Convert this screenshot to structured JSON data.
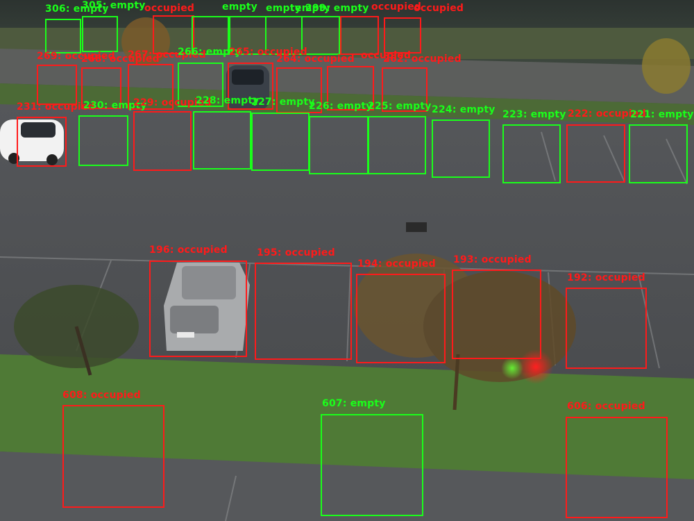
{
  "colors": {
    "occupied": "#ff1a1a",
    "empty": "#1aff1a"
  },
  "spots": [
    {
      "id": "306",
      "label": "306: empty",
      "status": "empty"
    },
    {
      "id": "305",
      "label": "305: empty",
      "status": "empty"
    },
    {
      "id": "304",
      "label": "occupied",
      "status": "occupied"
    },
    {
      "id": "303",
      "label": "empty",
      "status": "empty"
    },
    {
      "id": "302",
      "label": "empty",
      "status": "empty"
    },
    {
      "id": "301",
      "label": "empty",
      "status": "empty"
    },
    {
      "id": "300",
      "label": "empty",
      "status": "empty"
    },
    {
      "id": "299",
      "label": "299: empty",
      "status": "empty"
    },
    {
      "id": "298",
      "label": "occupied",
      "status": "occupied"
    },
    {
      "id": "297",
      "label": "occupied",
      "status": "occupied"
    },
    {
      "id": "269",
      "label": "269: occupied",
      "status": "occupied"
    },
    {
      "id": "268",
      "label": "268: occupied",
      "status": "occupied"
    },
    {
      "id": "267",
      "label": "267: occupied",
      "status": "occupied"
    },
    {
      "id": "266",
      "label": "266: empty",
      "status": "empty"
    },
    {
      "id": "265",
      "label": "265: occupied",
      "status": "occupied"
    },
    {
      "id": "264",
      "label": "264: occupied",
      "status": "occupied"
    },
    {
      "id": "263",
      "label": "occupied",
      "status": "occupied"
    },
    {
      "id": "262",
      "label": "262: occupied",
      "status": "occupied"
    },
    {
      "id": "231",
      "label": "231: occupied",
      "status": "occupied"
    },
    {
      "id": "230",
      "label": "230: empty",
      "status": "empty"
    },
    {
      "id": "229",
      "label": "229: occupied",
      "status": "occupied"
    },
    {
      "id": "228",
      "label": "228: empty",
      "status": "empty"
    },
    {
      "id": "227",
      "label": "227: empty",
      "status": "empty"
    },
    {
      "id": "226",
      "label": "226: empty",
      "status": "empty"
    },
    {
      "id": "225",
      "label": "225: empty",
      "status": "empty"
    },
    {
      "id": "224",
      "label": "224: empty",
      "status": "empty"
    },
    {
      "id": "223",
      "label": "223: empty",
      "status": "empty"
    },
    {
      "id": "222",
      "label": "222: occupied",
      "status": "occupied"
    },
    {
      "id": "221",
      "label": "221: empty",
      "status": "empty"
    },
    {
      "id": "196",
      "label": "196: occupied",
      "status": "occupied"
    },
    {
      "id": "195",
      "label": "195: occupied",
      "status": "occupied"
    },
    {
      "id": "194",
      "label": "194: occupied",
      "status": "occupied"
    },
    {
      "id": "193",
      "label": "193: occupied",
      "status": "occupied"
    },
    {
      "id": "192",
      "label": "192: occupied",
      "status": "occupied"
    },
    {
      "id": "608",
      "label": "608: occupied",
      "status": "occupied"
    },
    {
      "id": "607",
      "label": "607: empty",
      "status": "empty"
    },
    {
      "id": "606",
      "label": "606: occupied",
      "status": "occupied"
    }
  ]
}
